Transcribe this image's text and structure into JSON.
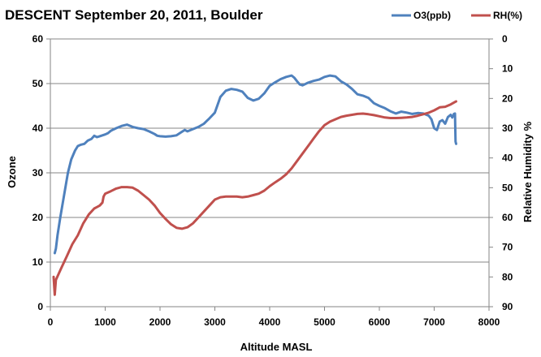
{
  "chart_data": {
    "type": "line",
    "title": "DESCENT September 20, 2011, Boulder",
    "xlabel": "Altitude MASL",
    "ylabel": "Ozone",
    "y2label": "Relative Humidity %",
    "xlim": [
      0,
      8000
    ],
    "ylim": [
      0,
      60
    ],
    "y2lim": [
      0,
      90
    ],
    "y2_reversed": true,
    "grid": true,
    "legend_position": "top-right",
    "x_ticks": [
      "0",
      "1000",
      "2000",
      "3000",
      "4000",
      "5000",
      "6000",
      "7000",
      "8000"
    ],
    "y_ticks": [
      "0",
      "10",
      "20",
      "30",
      "40",
      "50",
      "60"
    ],
    "y2_ticks": [
      "0",
      "10",
      "20",
      "30",
      "40",
      "50",
      "60",
      "70",
      "80",
      "90"
    ],
    "series": [
      {
        "name": "O3(ppb)",
        "axis": "left",
        "color": "#4F81BD",
        "x": [
          80,
          100,
          130,
          180,
          250,
          320,
          380,
          450,
          500,
          560,
          620,
          680,
          750,
          800,
          850,
          900,
          950,
          1000,
          1050,
          1100,
          1150,
          1200,
          1300,
          1400,
          1500,
          1600,
          1700,
          1800,
          1900,
          1950,
          2000,
          2100,
          2200,
          2300,
          2400,
          2450,
          2500,
          2600,
          2700,
          2800,
          2900,
          3000,
          3100,
          3200,
          3300,
          3400,
          3500,
          3600,
          3700,
          3800,
          3900,
          4000,
          4100,
          4200,
          4300,
          4400,
          4450,
          4500,
          4550,
          4600,
          4700,
          4800,
          4900,
          5000,
          5100,
          5200,
          5300,
          5400,
          5500,
          5600,
          5700,
          5800,
          5900,
          6000,
          6100,
          6200,
          6300,
          6400,
          6500,
          6600,
          6700,
          6800,
          6900,
          6950,
          7000,
          7050,
          7100,
          7150,
          7200,
          7250,
          7300,
          7330,
          7360,
          7380,
          7390,
          7400
        ],
        "values": [
          12,
          13,
          16,
          20,
          25,
          30,
          33,
          35,
          36,
          36.3,
          36.5,
          37.2,
          37.6,
          38.3,
          38.0,
          38.2,
          38.4,
          38.6,
          38.9,
          39.4,
          39.7,
          40.0,
          40.5,
          40.8,
          40.3,
          40.0,
          39.8,
          39.3,
          38.7,
          38.3,
          38.2,
          38.1,
          38.2,
          38.4,
          39.2,
          39.6,
          39.3,
          39.8,
          40.3,
          41.0,
          42.2,
          43.5,
          47.0,
          48.4,
          48.8,
          48.6,
          48.2,
          46.8,
          46.2,
          46.6,
          47.8,
          49.5,
          50.3,
          51.0,
          51.5,
          51.8,
          51.3,
          50.5,
          49.8,
          49.6,
          50.2,
          50.6,
          50.9,
          51.5,
          51.8,
          51.6,
          50.5,
          49.8,
          48.8,
          47.6,
          47.3,
          46.8,
          45.6,
          45.0,
          44.5,
          43.8,
          43.3,
          43.7,
          43.5,
          43.2,
          43.4,
          43.3,
          42.8,
          42.0,
          40.0,
          39.6,
          41.5,
          41.8,
          41.0,
          42.5,
          43.0,
          42.4,
          43.2,
          43.3,
          37.0,
          36.5
        ]
      },
      {
        "name": "RH(%)",
        "axis": "right",
        "color": "#C0504D",
        "x": [
          60,
          70,
          80,
          100,
          150,
          200,
          300,
          400,
          500,
          600,
          700,
          800,
          850,
          900,
          950,
          970,
          1000,
          1100,
          1200,
          1300,
          1400,
          1500,
          1600,
          1700,
          1800,
          1900,
          2000,
          2100,
          2200,
          2300,
          2400,
          2500,
          2600,
          2700,
          2800,
          2900,
          3000,
          3100,
          3200,
          3300,
          3400,
          3500,
          3600,
          3700,
          3800,
          3900,
          4000,
          4100,
          4200,
          4300,
          4400,
          4500,
          4600,
          4700,
          4800,
          4900,
          5000,
          5100,
          5200,
          5300,
          5400,
          5500,
          5600,
          5700,
          5800,
          5900,
          6000,
          6100,
          6200,
          6300,
          6400,
          6500,
          6600,
          6700,
          6800,
          6900,
          7000,
          7100,
          7200,
          7300,
          7350,
          7380,
          7400
        ],
        "values": [
          80,
          83,
          86,
          81,
          79,
          77,
          73,
          69,
          66,
          62,
          59,
          57,
          56.5,
          56,
          55,
          53,
          52,
          51.2,
          50.3,
          49.8,
          49.8,
          50,
          51,
          52.5,
          54,
          56,
          58.5,
          60.5,
          62.3,
          63.5,
          63.8,
          63.3,
          62,
          60,
          58,
          56,
          54,
          53.2,
          53,
          53,
          53,
          53.2,
          53,
          52.5,
          52,
          51,
          49.5,
          48.2,
          47,
          45.5,
          43.5,
          41,
          38.5,
          36,
          33.5,
          31,
          29,
          27.8,
          27,
          26.2,
          25.8,
          25.5,
          25.2,
          25.1,
          25.3,
          25.6,
          26,
          26.4,
          26.6,
          26.6,
          26.5,
          26.4,
          26.2,
          25.8,
          25.3,
          24.8,
          24,
          23,
          22.8,
          22,
          21.5,
          21.2,
          21
        ]
      }
    ]
  }
}
